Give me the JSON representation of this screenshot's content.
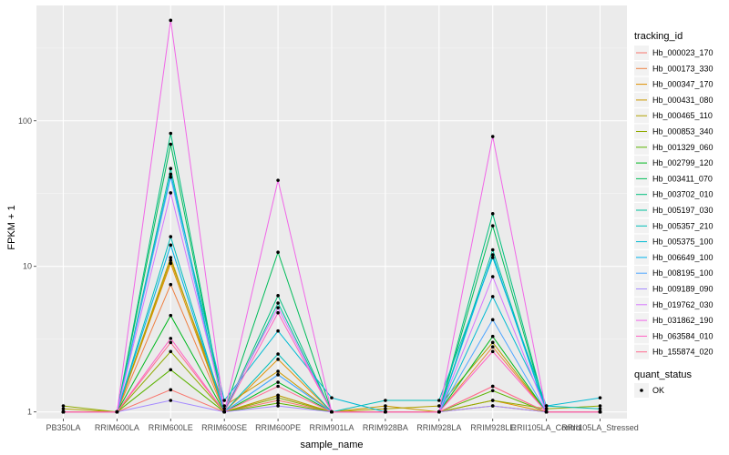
{
  "chart_data": {
    "type": "line",
    "xlabel": "sample_name",
    "ylabel": "FPKM + 1",
    "y_scale": "log10",
    "ylim": [
      0.9,
      620
    ],
    "y_ticks": [
      {
        "value": 1,
        "label": "1"
      },
      {
        "value": 10,
        "label": "10"
      },
      {
        "value": 100,
        "label": "100"
      }
    ],
    "grid": true,
    "legend_position": "right",
    "categories": [
      "PB350LA",
      "RRIM600LA",
      "RRIM600LE",
      "RRIM600SE",
      "RRIM600PE",
      "RRIM901LA",
      "RRIM928BA",
      "RRIM928LA",
      "RRIM928LE",
      "RRII105LA_Control",
      "RRII105LA_Stressed"
    ],
    "legend_title": "tracking_id",
    "series": [
      {
        "name": "Hb_000023_170",
        "color": "#F8766D",
        "values": [
          1.0,
          1.0,
          1.42,
          1.0,
          1.2,
          1.0,
          1.0,
          1.0,
          1.5,
          1.0,
          1.0
        ]
      },
      {
        "name": "Hb_000173_330",
        "color": "#EE8043",
        "values": [
          1.0,
          1.0,
          7.5,
          1.0,
          1.3,
          1.0,
          1.0,
          1.0,
          2.8,
          1.0,
          1.0
        ]
      },
      {
        "name": "Hb_000347_170",
        "color": "#DF8E00",
        "values": [
          1.0,
          1.0,
          10.5,
          1.0,
          2.3,
          1.0,
          1.0,
          1.0,
          1.2,
          1.0,
          1.0
        ]
      },
      {
        "name": "Hb_000431_080",
        "color": "#C99800",
        "values": [
          1.0,
          1.0,
          11.0,
          1.1,
          1.9,
          1.0,
          1.1,
          1.0,
          1.1,
          1.0,
          1.0
        ]
      },
      {
        "name": "Hb_000465_110",
        "color": "#B0A100",
        "values": [
          1.05,
          1.0,
          11.5,
          1.0,
          1.3,
          1.0,
          1.05,
          1.1,
          3.0,
          1.0,
          1.0
        ]
      },
      {
        "name": "Hb_000853_340",
        "color": "#8FAA00",
        "values": [
          1.1,
          1.0,
          2.6,
          1.0,
          1.25,
          1.0,
          1.0,
          1.0,
          1.2,
          1.05,
          1.1
        ]
      },
      {
        "name": "Hb_001329_060",
        "color": "#5BB300",
        "values": [
          1.0,
          1.0,
          1.95,
          1.0,
          1.15,
          1.0,
          1.0,
          1.0,
          1.4,
          1.0,
          1.0
        ]
      },
      {
        "name": "Hb_002799_120",
        "color": "#00B81F",
        "values": [
          1.0,
          1.0,
          4.6,
          1.0,
          1.6,
          1.0,
          1.0,
          1.0,
          3.3,
          1.0,
          1.0
        ]
      },
      {
        "name": "Hb_003411_070",
        "color": "#00BC59",
        "values": [
          1.0,
          1.0,
          69.0,
          1.0,
          12.5,
          1.0,
          1.0,
          1.0,
          19.0,
          1.0,
          1.0
        ]
      },
      {
        "name": "Hb_003702_010",
        "color": "#00BF7D",
        "values": [
          1.0,
          1.0,
          82.0,
          1.0,
          6.3,
          1.0,
          1.0,
          1.0,
          23.0,
          1.0,
          1.0
        ]
      },
      {
        "name": "Hb_005197_030",
        "color": "#00C09C",
        "values": [
          1.0,
          1.0,
          47.0,
          1.0,
          5.6,
          1.0,
          1.0,
          1.0,
          13.0,
          1.0,
          1.0
        ]
      },
      {
        "name": "Hb_005357_210",
        "color": "#00BEB9",
        "values": [
          1.0,
          1.0,
          16.0,
          1.0,
          2.5,
          1.0,
          1.2,
          1.2,
          11.5,
          1.1,
          1.05
        ]
      },
      {
        "name": "Hb_005375_100",
        "color": "#00BAD3",
        "values": [
          1.0,
          1.0,
          43.0,
          1.2,
          3.6,
          1.25,
          1.0,
          1.0,
          6.2,
          1.1,
          1.25
        ]
      },
      {
        "name": "Hb_006649_100",
        "color": "#00B2EB",
        "values": [
          1.0,
          1.0,
          14.0,
          1.0,
          1.8,
          1.0,
          1.0,
          1.0,
          12.0,
          1.0,
          1.0
        ]
      },
      {
        "name": "Hb_008195_100",
        "color": "#4DA6FF",
        "values": [
          1.0,
          1.0,
          41.0,
          1.0,
          1.8,
          1.0,
          1.0,
          1.0,
          4.3,
          1.0,
          1.0
        ]
      },
      {
        "name": "Hb_009189_090",
        "color": "#A58AFF",
        "values": [
          1.0,
          1.0,
          1.2,
          1.0,
          1.1,
          1.0,
          1.0,
          1.0,
          1.1,
          1.0,
          1.0
        ]
      },
      {
        "name": "Hb_019762_030",
        "color": "#D575FE",
        "values": [
          1.0,
          1.0,
          32.0,
          1.05,
          5.2,
          1.0,
          1.0,
          1.0,
          8.5,
          1.0,
          1.0
        ]
      },
      {
        "name": "Hb_031862_190",
        "color": "#F166E8",
        "values": [
          1.0,
          1.0,
          490.0,
          1.0,
          39.0,
          1.0,
          1.0,
          1.0,
          78.0,
          1.0,
          1.0
        ]
      },
      {
        "name": "Hb_063584_010",
        "color": "#FF61C3",
        "values": [
          1.0,
          1.0,
          3.2,
          1.0,
          4.8,
          1.0,
          1.0,
          1.0,
          2.6,
          1.0,
          1.0
        ]
      },
      {
        "name": "Hb_155874_020",
        "color": "#FF6C91",
        "values": [
          1.0,
          1.0,
          3.0,
          1.0,
          1.5,
          1.0,
          1.0,
          1.0,
          1.5,
          1.0,
          1.0
        ]
      }
    ],
    "shape_legend_title": "quant_status",
    "shape_legend_items": [
      "OK"
    ]
  }
}
